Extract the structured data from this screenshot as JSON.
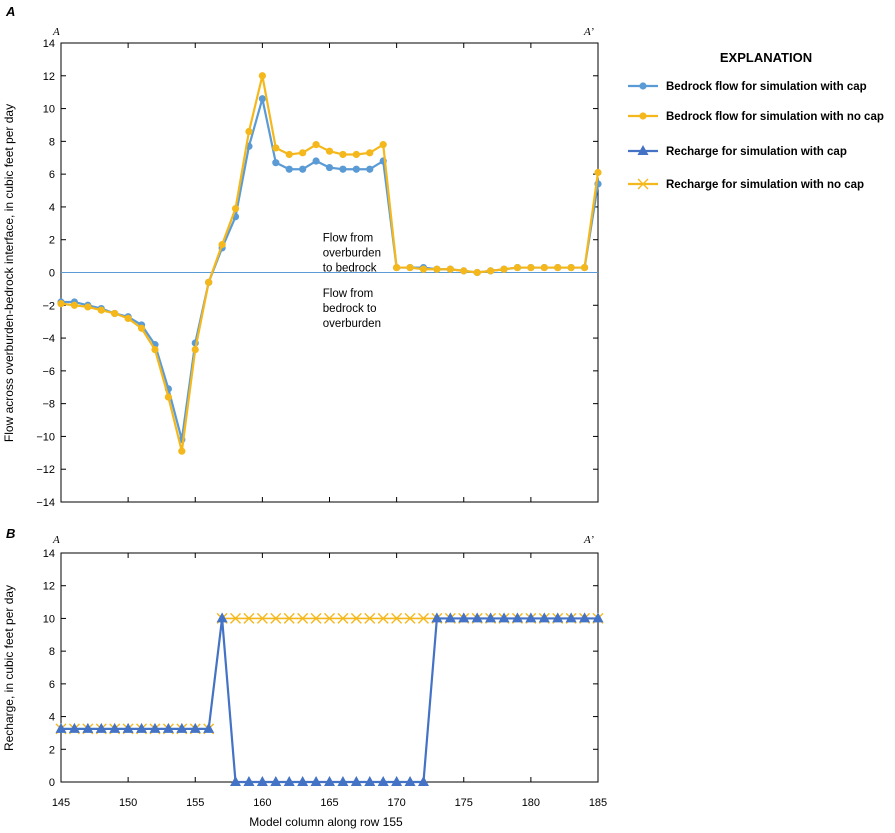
{
  "chart_data": [
    {
      "panel_label": "A",
      "type": "line",
      "section_start": "A",
      "section_end": "A’",
      "xlabel": "",
      "ylabel": "Flow across overburden-bedrock interface, in cubic feet per day",
      "xlim": [
        145,
        185
      ],
      "ylim": [
        -14,
        14
      ],
      "x_ticks": [
        145,
        150,
        155,
        160,
        165,
        170,
        175,
        180,
        185
      ],
      "y_ticks": [
        -14,
        -12,
        -10,
        -8,
        -6,
        -4,
        -2,
        0,
        2,
        4,
        6,
        8,
        10,
        12,
        14
      ],
      "zero_line": true,
      "annotations": [
        {
          "lines": [
            "Flow from",
            "overburden",
            "to bedrock"
          ],
          "x": 164.5,
          "y": 1.9
        },
        {
          "lines": [
            "Flow from",
            "bedrock to",
            "overburden"
          ],
          "x": 164.5,
          "y": -1.5
        }
      ],
      "series": [
        {
          "name": "Bedrock flow for simulation with cap",
          "color": "#5b9bd5",
          "marker": "circle",
          "x": [
            145,
            146,
            147,
            148,
            149,
            150,
            151,
            152,
            153,
            154,
            155,
            156,
            157,
            158,
            159,
            160,
            161,
            162,
            163,
            164,
            165,
            166,
            167,
            168,
            169,
            170,
            171,
            172,
            173,
            174,
            175,
            176,
            177,
            178,
            179,
            180,
            181,
            182,
            183,
            184,
            185
          ],
          "y": [
            -1.8,
            -1.8,
            -2.0,
            -2.2,
            -2.5,
            -2.7,
            -3.2,
            -4.4,
            -7.1,
            -10.2,
            -4.3,
            -0.6,
            1.5,
            3.4,
            7.7,
            10.6,
            6.7,
            6.3,
            6.3,
            6.8,
            6.4,
            6.3,
            6.3,
            6.3,
            6.8,
            0.3,
            0.3,
            0.3,
            0.2,
            0.2,
            0.1,
            0.0,
            0.1,
            0.2,
            0.3,
            0.3,
            0.3,
            0.3,
            0.3,
            0.3,
            5.4
          ]
        },
        {
          "name": "Bedrock flow for simulation with no cap",
          "color": "#f5b81c",
          "marker": "circle",
          "x": [
            145,
            146,
            147,
            148,
            149,
            150,
            151,
            152,
            153,
            154,
            155,
            156,
            157,
            158,
            159,
            160,
            161,
            162,
            163,
            164,
            165,
            166,
            167,
            168,
            169,
            170,
            171,
            172,
            173,
            174,
            175,
            176,
            177,
            178,
            179,
            180,
            181,
            182,
            183,
            184,
            185
          ],
          "y": [
            -1.9,
            -2.0,
            -2.1,
            -2.3,
            -2.5,
            -2.8,
            -3.4,
            -4.7,
            -7.6,
            -10.9,
            -4.7,
            -0.6,
            1.7,
            3.9,
            8.6,
            12.0,
            7.6,
            7.2,
            7.3,
            7.8,
            7.4,
            7.2,
            7.2,
            7.3,
            7.8,
            0.3,
            0.3,
            0.2,
            0.2,
            0.2,
            0.1,
            0.0,
            0.1,
            0.2,
            0.3,
            0.3,
            0.3,
            0.3,
            0.3,
            0.3,
            6.1
          ]
        }
      ]
    },
    {
      "panel_label": "B",
      "type": "line",
      "section_start": "A",
      "section_end": "A’",
      "xlabel": "Model column along row 155",
      "ylabel": "Recharge, in cubic feet per day",
      "xlim": [
        145,
        185
      ],
      "ylim": [
        0,
        14
      ],
      "x_ticks": [
        145,
        150,
        155,
        160,
        165,
        170,
        175,
        180,
        185
      ],
      "y_ticks": [
        0,
        2,
        4,
        6,
        8,
        10,
        12,
        14
      ],
      "series": [
        {
          "name": "Recharge for simulation with no cap",
          "color": "#f5b81c",
          "marker": "x",
          "x": [
            145,
            146,
            147,
            148,
            149,
            150,
            151,
            152,
            153,
            154,
            155,
            156,
            157,
            158,
            159,
            160,
            161,
            162,
            163,
            164,
            165,
            166,
            167,
            168,
            169,
            170,
            171,
            172,
            173,
            174,
            175,
            176,
            177,
            178,
            179,
            180,
            181,
            182,
            183,
            184,
            185
          ],
          "y": [
            3.25,
            3.25,
            3.25,
            3.25,
            3.25,
            3.25,
            3.25,
            3.25,
            3.25,
            3.25,
            3.25,
            3.25,
            10,
            10,
            10,
            10,
            10,
            10,
            10,
            10,
            10,
            10,
            10,
            10,
            10,
            10,
            10,
            10,
            10,
            10,
            10,
            10,
            10,
            10,
            10,
            10,
            10,
            10,
            10,
            10,
            10
          ]
        },
        {
          "name": "Recharge for simulation with cap",
          "color": "#4472c4",
          "marker": "triangle",
          "x": [
            145,
            146,
            147,
            148,
            149,
            150,
            151,
            152,
            153,
            154,
            155,
            156,
            157,
            158,
            159,
            160,
            161,
            162,
            163,
            164,
            165,
            166,
            167,
            168,
            169,
            170,
            171,
            172,
            173,
            174,
            175,
            176,
            177,
            178,
            179,
            180,
            181,
            182,
            183,
            184,
            185
          ],
          "y": [
            3.25,
            3.25,
            3.25,
            3.25,
            3.25,
            3.25,
            3.25,
            3.25,
            3.25,
            3.25,
            3.25,
            3.25,
            10,
            0,
            0,
            0,
            0,
            0,
            0,
            0,
            0,
            0,
            0,
            0,
            0,
            0,
            0,
            0,
            10,
            10,
            10,
            10,
            10,
            10,
            10,
            10,
            10,
            10,
            10,
            10,
            10
          ]
        }
      ]
    }
  ],
  "legend": {
    "title": "EXPLANATION",
    "placement": "top-right",
    "items": [
      {
        "label": "Bedrock flow for simulation with cap",
        "color": "#5b9bd5",
        "marker": "circle"
      },
      {
        "label": "Bedrock flow for simulation with no cap",
        "color": "#f5b81c",
        "marker": "circle"
      },
      {
        "label": "Recharge for simulation with cap",
        "color": "#4472c4",
        "marker": "triangle"
      },
      {
        "label": "Recharge for simulation with no cap",
        "color": "#f5b81c",
        "marker": "x"
      }
    ]
  }
}
